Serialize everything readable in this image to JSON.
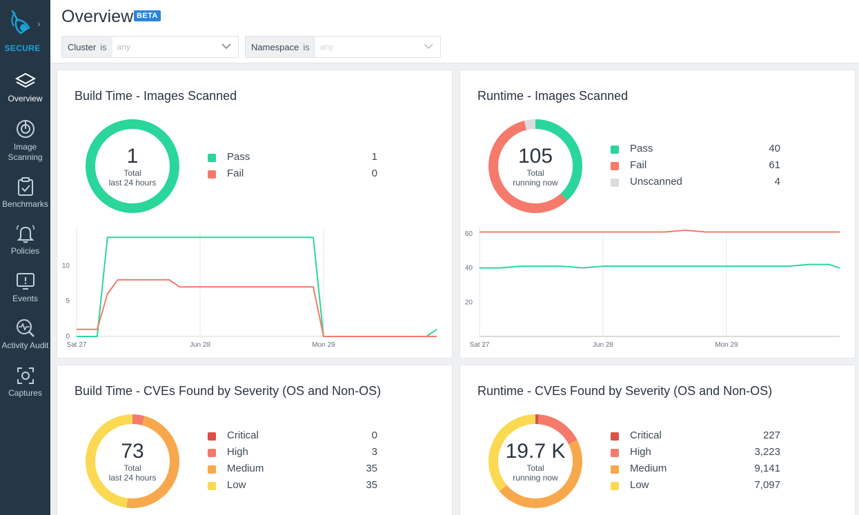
{
  "app": {
    "brand_label": "SECURE"
  },
  "sidebar": {
    "items": [
      {
        "label": "Overview",
        "icon": "layers-icon"
      },
      {
        "label": "Image Scanning",
        "icon": "scan-icon"
      },
      {
        "label": "Benchmarks",
        "icon": "clipboard-check-icon"
      },
      {
        "label": "Policies",
        "icon": "bell-icon"
      },
      {
        "label": "Events",
        "icon": "alert-screen-icon"
      },
      {
        "label": "Activity Audit",
        "icon": "pulse-search-icon"
      },
      {
        "label": "Captures",
        "icon": "capture-icon"
      }
    ]
  },
  "header": {
    "title": "Overview",
    "badge": "BETA",
    "filters": [
      {
        "key": "Cluster",
        "op": "is",
        "value": "any"
      },
      {
        "key": "Namespace",
        "op": "is",
        "value": "any"
      }
    ]
  },
  "colors": {
    "pass": "#2bd69a",
    "fail": "#f57a6c",
    "unscanned": "#dcdcdc",
    "critical": "#db5145",
    "high": "#f57a6c",
    "medium": "#f7a84c",
    "low": "#fbd953",
    "sidebar": "#253746",
    "accent": "#1aa3d9"
  },
  "cards": {
    "build_images": {
      "title": "Build Time - Images Scanned",
      "total": "1",
      "total_label": "Total",
      "period": "last 24 hours",
      "legend": [
        {
          "name": "Pass",
          "value": "1"
        },
        {
          "name": "Fail",
          "value": "0"
        }
      ]
    },
    "runtime_images": {
      "title": "Runtime - Images Scanned",
      "total": "105",
      "total_label": "Total",
      "period": "running now",
      "legend": [
        {
          "name": "Pass",
          "value": "40"
        },
        {
          "name": "Fail",
          "value": "61"
        },
        {
          "name": "Unscanned",
          "value": "4"
        }
      ]
    },
    "build_cves": {
      "title": "Build Time - CVEs Found by Severity (OS and Non-OS)",
      "total": "73",
      "total_label": "Total",
      "period": "last 24 hours",
      "legend": [
        {
          "name": "Critical",
          "value": "0"
        },
        {
          "name": "High",
          "value": "3"
        },
        {
          "name": "Medium",
          "value": "35"
        },
        {
          "name": "Low",
          "value": "35"
        }
      ]
    },
    "runtime_cves": {
      "title": "Runtime - CVEs Found by Severity (OS and Non-OS)",
      "total": "19.7 K",
      "total_label": "Total",
      "period": "running now",
      "legend": [
        {
          "name": "Critical",
          "value": "227"
        },
        {
          "name": "High",
          "value": "3,223"
        },
        {
          "name": "Medium",
          "value": "9,141"
        },
        {
          "name": "Low",
          "value": "7,097"
        }
      ]
    }
  },
  "chart_data": [
    {
      "type": "pie",
      "title": "Build Time - Images Scanned",
      "categories": [
        "Pass",
        "Fail"
      ],
      "values": [
        1,
        0
      ]
    },
    {
      "type": "pie",
      "title": "Runtime - Images Scanned",
      "categories": [
        "Pass",
        "Fail",
        "Unscanned"
      ],
      "values": [
        40,
        61,
        4
      ]
    },
    {
      "type": "pie",
      "title": "Build Time - CVEs Found by Severity (OS and Non-OS)",
      "categories": [
        "Critical",
        "High",
        "Medium",
        "Low"
      ],
      "values": [
        0,
        3,
        35,
        35
      ]
    },
    {
      "type": "pie",
      "title": "Runtime - CVEs Found by Severity (OS and Non-OS)",
      "categories": [
        "Critical",
        "High",
        "Medium",
        "Low"
      ],
      "values": [
        227,
        3223,
        9141,
        7097
      ]
    },
    {
      "type": "line",
      "x": [
        0,
        0.5,
        1,
        1.5,
        2,
        3,
        4,
        4.5,
        5,
        6,
        7,
        8,
        9,
        10,
        11,
        11.5,
        12,
        13,
        14,
        15,
        16,
        17,
        17.5
      ],
      "x_tick_labels": [
        {
          "x": 0,
          "label": "Sat 27"
        },
        {
          "x": 6,
          "label": "Jun 28"
        },
        {
          "x": 12,
          "label": "Mon 29"
        }
      ],
      "ylim": [
        0,
        15
      ],
      "yticks": [
        0,
        5,
        10
      ],
      "series": [
        {
          "name": "Pass",
          "values": [
            0,
            0,
            0,
            14,
            14,
            14,
            14,
            14,
            14,
            14,
            14,
            14,
            14,
            14,
            14,
            14,
            0,
            0,
            0,
            0,
            0,
            0,
            1
          ]
        },
        {
          "name": "Fail",
          "values": [
            1,
            1,
            1,
            6,
            8,
            8,
            8,
            8,
            7,
            7,
            7,
            7,
            7,
            7,
            7,
            7,
            0,
            0,
            0,
            0,
            0,
            0,
            0
          ]
        }
      ],
      "grid": "vertical"
    },
    {
      "type": "line",
      "x": [
        0,
        1,
        2,
        3,
        4,
        5,
        6,
        7,
        8,
        9,
        10,
        11,
        12,
        13,
        14,
        15,
        16,
        17,
        17.5
      ],
      "x_tick_labels": [
        {
          "x": 0,
          "label": "Sat 27"
        },
        {
          "x": 6,
          "label": "Jun 28"
        },
        {
          "x": 12,
          "label": "Mon 29"
        }
      ],
      "ylim": [
        0,
        62
      ],
      "yticks": [
        20,
        40,
        60
      ],
      "series": [
        {
          "name": "Fail",
          "values": [
            61,
            61,
            61,
            61,
            61,
            61,
            61,
            61,
            61,
            61,
            62,
            61,
            61,
            61,
            61,
            61,
            61,
            61,
            61
          ]
        },
        {
          "name": "Pass",
          "values": [
            40,
            40,
            41,
            41,
            41,
            40,
            41,
            41,
            41,
            41,
            41,
            41,
            41,
            41,
            41,
            41,
            42,
            42,
            40
          ]
        },
        {
          "name": "Unscanned",
          "values": [
            0,
            0,
            0,
            0,
            0,
            0,
            0,
            0,
            0,
            0,
            0,
            0,
            0,
            0,
            0,
            0,
            0,
            0,
            0
          ]
        }
      ],
      "grid": "vertical"
    }
  ]
}
